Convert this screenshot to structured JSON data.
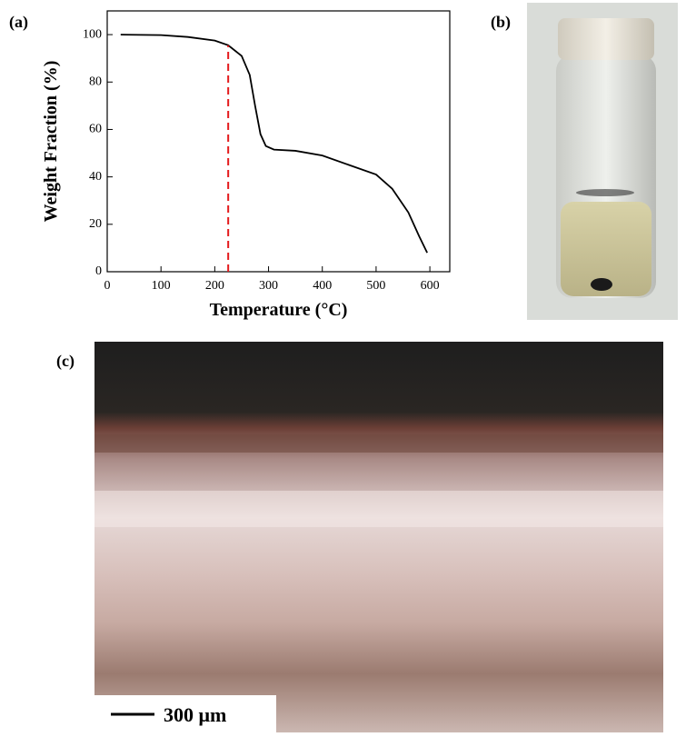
{
  "chart_data": {
    "type": "line",
    "panel_label": "(a)",
    "xlabel": "Temperature (°C)",
    "ylabel": "Weight Fraction (%)",
    "x": [
      25,
      100,
      150,
      200,
      225,
      250,
      265,
      275,
      285,
      295,
      310,
      350,
      400,
      450,
      500,
      530,
      560,
      580,
      595
    ],
    "values": [
      100,
      99.8,
      99,
      97.5,
      95.5,
      91,
      83,
      70,
      58,
      53,
      51.5,
      51,
      49,
      45,
      41,
      35,
      25,
      15,
      8
    ],
    "color": "#000000",
    "xlim": [
      0,
      637
    ],
    "ylim": [
      0,
      110
    ],
    "xticks": [
      0,
      100,
      200,
      300,
      400,
      500,
      600
    ],
    "yticks": [
      0,
      20,
      40,
      60,
      80,
      100
    ],
    "vline": {
      "x": 225,
      "color": "#e41a1c",
      "style": "dashed"
    }
  },
  "panels": [
    {
      "label": "(b)"
    },
    {
      "label": "(c)",
      "scale_bar": "300 μm"
    }
  ]
}
